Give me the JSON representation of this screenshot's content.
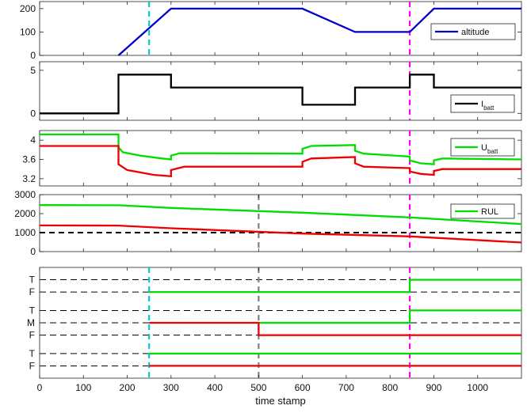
{
  "chart_data": [
    {
      "type": "line",
      "xlim": [
        0,
        1100
      ],
      "ylim": [
        0,
        230
      ],
      "yticks": [
        "0",
        "100",
        "200"
      ],
      "legend": {
        "position": "right",
        "label": "altitude"
      },
      "series": [
        {
          "name": "altitude",
          "color": "#0000cc",
          "points": [
            [
              180,
              0
            ],
            [
              300,
              200
            ],
            [
              600,
              200
            ],
            [
              720,
              100
            ],
            [
              845,
              100
            ],
            [
              900,
              200
            ],
            [
              1100,
              200
            ]
          ]
        }
      ],
      "markers": [
        {
          "x": 250,
          "color": "#00cccc"
        },
        {
          "x": 845,
          "color": "#ff00ff"
        }
      ]
    },
    {
      "type": "line",
      "xlim": [
        0,
        1100
      ],
      "ylim": [
        -0.8,
        6
      ],
      "yticks": [
        "0",
        "5"
      ],
      "legend": {
        "position": "bottom-right",
        "label": "I",
        "label_sub": "batt"
      },
      "series": [
        {
          "name": "I_batt",
          "color": "#000000",
          "points": [
            [
              0,
              0
            ],
            [
              180,
              0
            ],
            [
              180,
              4.5
            ],
            [
              300,
              4.5
            ],
            [
              300,
              3
            ],
            [
              600,
              3
            ],
            [
              600,
              1
            ],
            [
              720,
              1
            ],
            [
              720,
              3
            ],
            [
              845,
              3
            ],
            [
              845,
              4.5
            ],
            [
              900,
              4.5
            ],
            [
              900,
              3
            ],
            [
              1100,
              3
            ]
          ]
        }
      ],
      "markers": [
        {
          "x": 845,
          "color": "#ff00ff"
        }
      ]
    },
    {
      "type": "line",
      "xlim": [
        0,
        1100
      ],
      "ylim": [
        3.05,
        4.2
      ],
      "yticks": [
        "3.2",
        "3.6",
        "4"
      ],
      "legend": {
        "position": "top-right",
        "label": "U",
        "label_sub": "batt"
      },
      "series": [
        {
          "name": "U_batt (green)",
          "color": "#00dd00",
          "points": [
            [
              0,
              4.12
            ],
            [
              180,
              4.12
            ],
            [
              180,
              3.85
            ],
            [
              190,
              3.75
            ],
            [
              230,
              3.68
            ],
            [
              280,
              3.62
            ],
            [
              300,
              3.6
            ],
            [
              300,
              3.68
            ],
            [
              320,
              3.73
            ],
            [
              600,
              3.72
            ],
            [
              600,
              3.82
            ],
            [
              620,
              3.88
            ],
            [
              720,
              3.9
            ],
            [
              720,
              3.78
            ],
            [
              740,
              3.72
            ],
            [
              845,
              3.66
            ],
            [
              845,
              3.58
            ],
            [
              870,
              3.52
            ],
            [
              900,
              3.5
            ],
            [
              900,
              3.58
            ],
            [
              920,
              3.62
            ],
            [
              1100,
              3.6
            ]
          ]
        },
        {
          "name": "U_batt (red)",
          "color": "#ee0000",
          "points": [
            [
              0,
              3.88
            ],
            [
              180,
              3.88
            ],
            [
              180,
              3.5
            ],
            [
              200,
              3.38
            ],
            [
              260,
              3.28
            ],
            [
              300,
              3.25
            ],
            [
              300,
              3.38
            ],
            [
              330,
              3.45
            ],
            [
              600,
              3.45
            ],
            [
              600,
              3.55
            ],
            [
              620,
              3.62
            ],
            [
              720,
              3.65
            ],
            [
              720,
              3.52
            ],
            [
              740,
              3.45
            ],
            [
              845,
              3.42
            ],
            [
              845,
              3.35
            ],
            [
              870,
              3.3
            ],
            [
              900,
              3.28
            ],
            [
              900,
              3.36
            ],
            [
              920,
              3.4
            ],
            [
              1100,
              3.4
            ]
          ]
        }
      ],
      "markers": [
        {
          "x": 845,
          "color": "#ff00ff"
        }
      ]
    },
    {
      "type": "line",
      "xlim": [
        0,
        1100
      ],
      "ylim": [
        0,
        3000
      ],
      "yticks": [
        "0",
        "1000",
        "2000",
        "3000"
      ],
      "legend": {
        "position": "top-right",
        "label": "RUL"
      },
      "series": [
        {
          "name": "RUL (green)",
          "color": "#00dd00",
          "points": [
            [
              0,
              2450
            ],
            [
              180,
              2440
            ],
            [
              300,
              2300
            ],
            [
              600,
              2050
            ],
            [
              845,
              1800
            ],
            [
              1100,
              1450
            ]
          ]
        },
        {
          "name": "RUL (red)",
          "color": "#ee0000",
          "points": [
            [
              0,
              1380
            ],
            [
              180,
              1370
            ],
            [
              300,
              1230
            ],
            [
              600,
              950
            ],
            [
              845,
              800
            ],
            [
              1100,
              480
            ]
          ]
        }
      ],
      "threshold": {
        "y": 1000,
        "color": "#000000"
      },
      "markers": [
        {
          "x": 500,
          "color": "#808080"
        },
        {
          "x": 845,
          "color": "#ff00ff"
        }
      ]
    },
    {
      "type": "line",
      "xlim": [
        0,
        1100
      ],
      "ylim": [
        0,
        9
      ],
      "xticks": [
        "0",
        "100",
        "200",
        "300",
        "400",
        "500",
        "600",
        "700",
        "800",
        "900",
        "1000"
      ],
      "xlabel": "time stamp",
      "levels": [
        {
          "label": "T",
          "y": 8
        },
        {
          "label": "F",
          "y": 7
        },
        {
          "label": "T",
          "y": 5.5
        },
        {
          "label": "M",
          "y": 4.5
        },
        {
          "label": "F",
          "y": 3.5
        },
        {
          "label": "T",
          "y": 2
        },
        {
          "label": "F",
          "y": 1
        }
      ],
      "series": [
        {
          "name": "flag1",
          "color": "#00dd00",
          "points": [
            [
              250,
              7
            ],
            [
              845,
              7
            ],
            [
              845,
              8
            ],
            [
              1100,
              8
            ]
          ]
        },
        {
          "name": "flag2 green",
          "color": "#00dd00",
          "points": [
            [
              500,
              4.5
            ],
            [
              845,
              4.5
            ],
            [
              845,
              5.5
            ],
            [
              1100,
              5.5
            ]
          ]
        },
        {
          "name": "flag2 red",
          "color": "#ee0000",
          "points": [
            [
              250,
              4.5
            ],
            [
              500,
              4.5
            ],
            [
              500,
              3.5
            ],
            [
              1100,
              3.5
            ]
          ]
        },
        {
          "name": "flag3 green",
          "color": "#00dd00",
          "points": [
            [
              250,
              2
            ],
            [
              1100,
              2
            ]
          ]
        },
        {
          "name": "flag3 red",
          "color": "#ee0000",
          "points": [
            [
              250,
              1
            ],
            [
              1100,
              1
            ]
          ]
        }
      ],
      "markers": [
        {
          "x": 250,
          "color": "#00cccc"
        },
        {
          "x": 500,
          "color": "#808080"
        },
        {
          "x": 845,
          "color": "#ff00ff"
        }
      ]
    }
  ]
}
